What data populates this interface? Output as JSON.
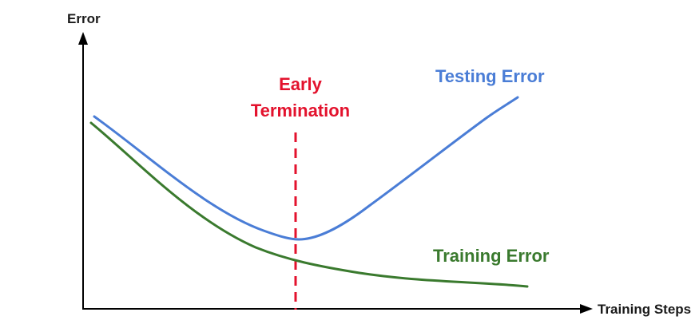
{
  "labels": {
    "y_axis": "Error",
    "x_axis": "Training Steps",
    "testing": "Testing Error",
    "training": "Training Error",
    "early_line1": "Early",
    "early_line2": "Termination"
  },
  "colors": {
    "axis": "#000000",
    "testing": "#4a7dd6",
    "training": "#3a7a2e",
    "early_termination": "#e3122d",
    "axis_text": "#1a1a1a"
  }
}
